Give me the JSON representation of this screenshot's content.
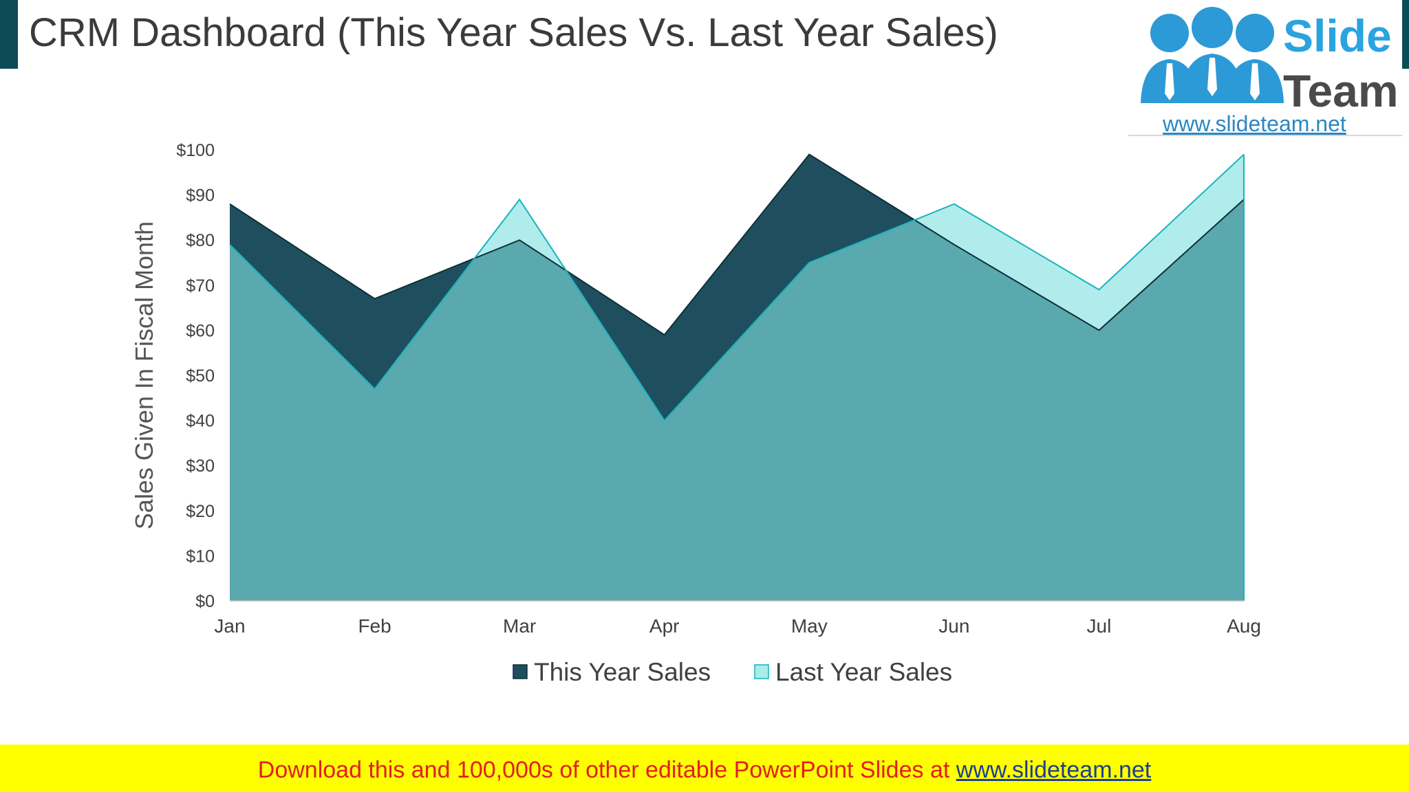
{
  "slide": {
    "title": "CRM Dashboard (This Year Sales Vs. Last Year Sales)"
  },
  "logo": {
    "word1": "Slide",
    "word2": "Team",
    "url": "www.slideteam.net"
  },
  "footer": {
    "text": "Download this and 100,000s of other editable PowerPoint Slides at",
    "link": "www.slideteam.net"
  },
  "colors": {
    "this_year_fill": "#1f4f5f",
    "this_year_line": "#0e2f38",
    "last_year_fill": "#7fe0e0",
    "last_year_line": "#19b3bd",
    "overlap_fill": "#1e7f89",
    "accent_bar": "#0b4b57"
  },
  "chart_data": {
    "type": "area",
    "categories": [
      "Jan",
      "Feb",
      "Mar",
      "Apr",
      "May",
      "Jun",
      "Jul",
      "Aug"
    ],
    "series": [
      {
        "name": "This Year Sales",
        "values": [
          88,
          67,
          80,
          59,
          99,
          79,
          60,
          89
        ]
      },
      {
        "name": "Last Year Sales",
        "values": [
          79,
          47,
          89,
          40,
          75,
          88,
          69,
          99
        ]
      }
    ],
    "title": "",
    "xlabel": "",
    "ylabel": "Sales Given In Fiscal Month",
    "ylim": [
      0,
      100
    ],
    "yticks": [
      "$0",
      "$10",
      "$20",
      "$30",
      "$40",
      "$50",
      "$60",
      "$70",
      "$80",
      "$90",
      "$100"
    ],
    "grid": false,
    "legend": "bottom"
  }
}
